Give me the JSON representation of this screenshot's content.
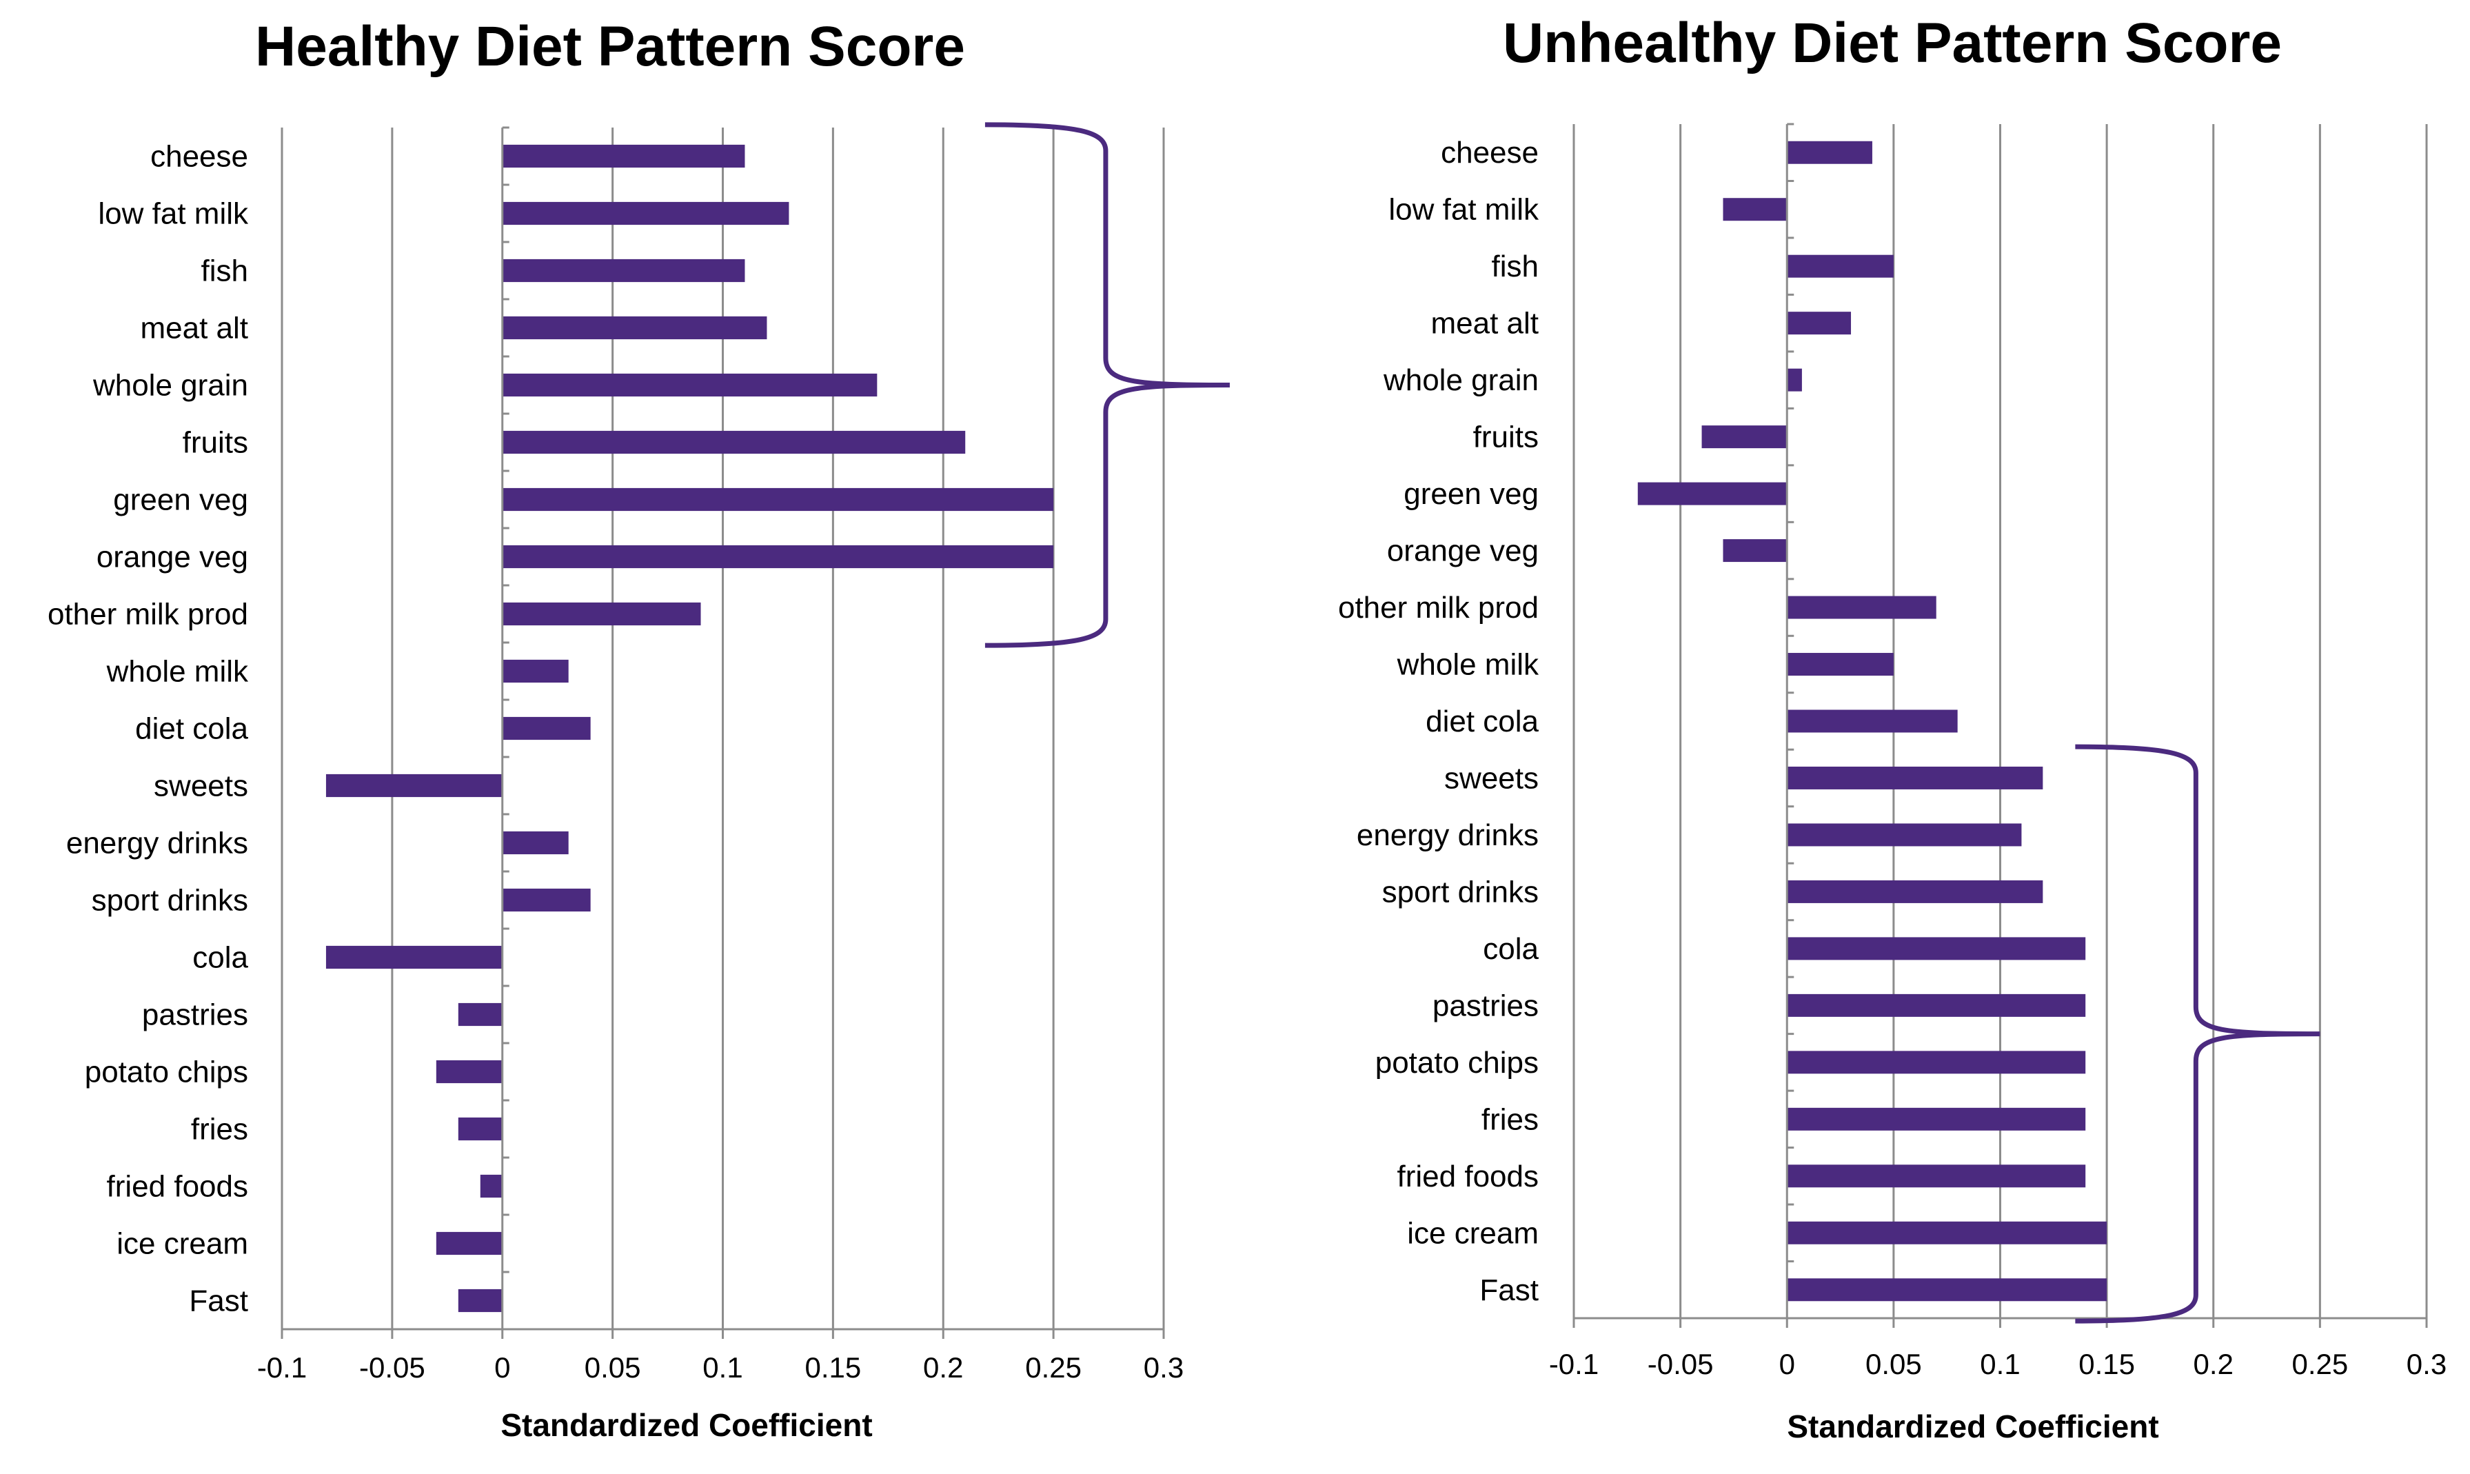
{
  "chart_data": [
    {
      "type": "bar",
      "orientation": "horizontal",
      "title": "Healthy Diet Pattern Score",
      "xlabel": "Standardized Coefficient",
      "ylabel": "",
      "xlim": [
        -0.1,
        0.3
      ],
      "xticks": [
        -0.1,
        -0.05,
        0,
        0.05,
        0.1,
        0.15,
        0.2,
        0.25,
        0.3
      ],
      "xtick_labels": [
        "-0.1",
        "-0.05",
        "0",
        "0.05",
        "0.1",
        "0.15",
        "0.2",
        "0.25",
        "0.3"
      ],
      "grid": "vertical",
      "categories": [
        "cheese",
        "low fat milk",
        "fish",
        "meat alt",
        "whole grain",
        "fruits",
        "green veg",
        "orange veg",
        "other milk prod",
        "whole milk",
        "diet cola",
        "sweets",
        "energy drinks",
        "sport drinks",
        "cola",
        "pastries",
        "potato chips",
        "fries",
        "fried foods",
        "ice cream",
        "Fast"
      ],
      "values": [
        0.11,
        0.13,
        0.11,
        0.12,
        0.17,
        0.21,
        0.25,
        0.25,
        0.09,
        0.03,
        0.04,
        -0.08,
        0.03,
        0.04,
        -0.08,
        -0.02,
        -0.03,
        -0.02,
        -0.01,
        -0.03,
        -0.02
      ],
      "bracket": {
        "side": "right",
        "from_category": "cheese",
        "to_category": "other milk prod",
        "tip_value": 0.33
      },
      "bar_color": "#4b2a7f"
    },
    {
      "type": "bar",
      "orientation": "horizontal",
      "title": "Unhealthy Diet Pattern Score",
      "xlabel": "Standardized Coefficient",
      "ylabel": "",
      "xlim": [
        -0.1,
        0.3
      ],
      "xticks": [
        -0.1,
        -0.05,
        0,
        0.05,
        0.1,
        0.15,
        0.2,
        0.25,
        0.3
      ],
      "xtick_labels": [
        "-0.1",
        "-0.05",
        "0",
        "0.05",
        "0.1",
        "0.15",
        "0.2",
        "0.25",
        "0.3"
      ],
      "grid": "vertical",
      "categories": [
        "cheese",
        "low fat milk",
        "fish",
        "meat alt",
        "whole grain",
        "fruits",
        "green veg",
        "orange veg",
        "other milk prod",
        "whole milk",
        "diet cola",
        "sweets",
        "energy drinks",
        "sport drinks",
        "cola",
        "pastries",
        "potato chips",
        "fries",
        "fried foods",
        "ice cream",
        "Fast"
      ],
      "values": [
        0.04,
        -0.03,
        0.05,
        0.03,
        0.007,
        -0.04,
        -0.07,
        -0.03,
        0.07,
        0.05,
        0.08,
        0.12,
        0.11,
        0.12,
        0.14,
        0.14,
        0.14,
        0.14,
        0.14,
        0.15,
        0.15
      ],
      "bracket": {
        "side": "right",
        "from_category": "sweets",
        "to_category": "Fast",
        "tip_value": 0.25
      },
      "bar_color": "#4b2a7f"
    }
  ]
}
